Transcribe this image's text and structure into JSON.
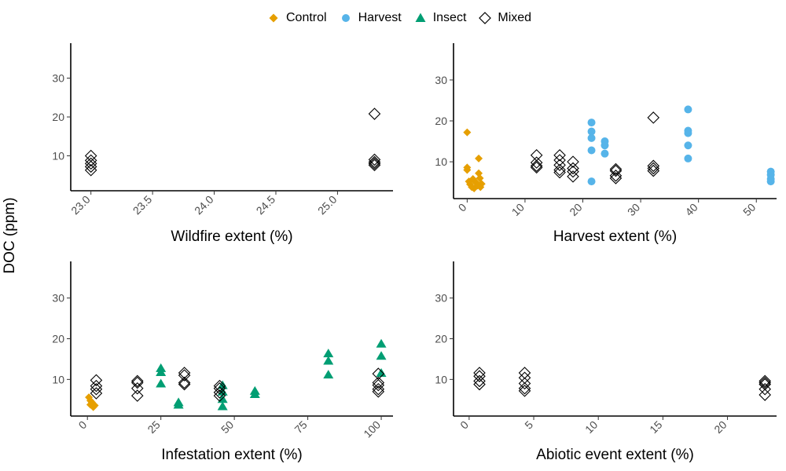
{
  "legend": {
    "items": [
      {
        "label": "Control",
        "color": "#E69F00",
        "shape": "diamond-filled"
      },
      {
        "label": "Harvest",
        "color": "#56B4E9",
        "shape": "circle-filled"
      },
      {
        "label": "Insect",
        "color": "#009E73",
        "shape": "triangle-filled"
      },
      {
        "label": "Mixed",
        "color": "#000000",
        "shape": "diamond-open"
      }
    ]
  },
  "y_label": "DOC (ppm)",
  "chart_data": [
    {
      "type": "scatter",
      "xlabel": "Wildfire extent (%)",
      "ylabel": "DOC (ppm)",
      "xlim": [
        22.9,
        25.45
      ],
      "ylim": [
        1,
        39
      ],
      "xticks": [
        "23.0",
        "23.5",
        "24.0",
        "24.5",
        "25.0"
      ],
      "yticks": [
        "10",
        "20",
        "30"
      ],
      "series": [
        {
          "name": "Mixed",
          "points": [
            [
              23.0,
              10.0
            ],
            [
              23.0,
              8.8
            ],
            [
              23.0,
              8.0
            ],
            [
              23.0,
              7.2
            ],
            [
              23.0,
              6.3
            ],
            [
              25.3,
              20.8
            ],
            [
              25.3,
              9.0
            ],
            [
              25.3,
              8.4
            ],
            [
              25.3,
              8.0
            ],
            [
              25.3,
              7.6
            ]
          ]
        }
      ]
    },
    {
      "type": "scatter",
      "xlabel": "Harvest extent (%)",
      "ylabel": "DOC (ppm)",
      "xlim": [
        -1,
        53.5
      ],
      "ylim": [
        1,
        39
      ],
      "xticks": [
        "0",
        "10",
        "20",
        "30",
        "40",
        "50"
      ],
      "yticks": [
        "10",
        "20",
        "30"
      ],
      "series": [
        {
          "name": "Control",
          "points": [
            [
              0,
              17.2
            ],
            [
              0,
              8.6
            ],
            [
              0,
              8.0
            ],
            [
              0.3,
              5.2
            ],
            [
              0.5,
              4.5
            ],
            [
              0.8,
              3.8
            ],
            [
              1,
              5.8
            ],
            [
              1.2,
              3.5
            ],
            [
              1.5,
              5.0
            ],
            [
              1.8,
              4.2
            ],
            [
              2,
              10.8
            ],
            [
              2,
              7.2
            ],
            [
              2.2,
              6.0
            ],
            [
              2.3,
              3.8
            ],
            [
              2.5,
              4.6
            ]
          ]
        },
        {
          "name": "Harvest",
          "points": [
            [
              21.5,
              19.6
            ],
            [
              21.5,
              17.4
            ],
            [
              21.5,
              15.8
            ],
            [
              21.5,
              12.8
            ],
            [
              21.5,
              5.2
            ],
            [
              23.8,
              15.0
            ],
            [
              23.8,
              14.0
            ],
            [
              23.8,
              12.0
            ],
            [
              38.2,
              22.8
            ],
            [
              38.2,
              17.6
            ],
            [
              38.2,
              17.0
            ],
            [
              38.2,
              14.0
            ],
            [
              38.2,
              10.8
            ],
            [
              52.5,
              7.6
            ],
            [
              52.5,
              6.8
            ],
            [
              52.5,
              5.8
            ],
            [
              52.5,
              5.2
            ]
          ]
        },
        {
          "name": "Mixed",
          "points": [
            [
              12,
              11.6
            ],
            [
              12,
              9.8
            ],
            [
              12,
              9.0
            ],
            [
              12,
              8.6
            ],
            [
              16,
              11.6
            ],
            [
              16,
              10.4
            ],
            [
              16,
              9.2
            ],
            [
              16,
              8.0
            ],
            [
              16,
              7.4
            ],
            [
              18.3,
              10.0
            ],
            [
              18.3,
              8.4
            ],
            [
              18.3,
              7.6
            ],
            [
              18.3,
              6.4
            ],
            [
              25.7,
              8.2
            ],
            [
              25.7,
              7.8
            ],
            [
              25.7,
              6.6
            ],
            [
              25.7,
              6.0
            ],
            [
              32.2,
              20.8
            ],
            [
              32.2,
              9.0
            ],
            [
              32.2,
              8.4
            ],
            [
              32.2,
              7.8
            ]
          ]
        }
      ]
    },
    {
      "type": "scatter",
      "xlabel": "Infestation extent (%)",
      "ylabel": "DOC (ppm)",
      "xlim": [
        -3,
        104
      ],
      "ylim": [
        1,
        39
      ],
      "xticks": [
        "0",
        "25",
        "50",
        "75",
        "100"
      ],
      "yticks": [
        "10",
        "20",
        "30"
      ],
      "series": [
        {
          "name": "Control",
          "points": [
            [
              0.5,
              5.6
            ],
            [
              1,
              4.8
            ],
            [
              1,
              3.8
            ],
            [
              1.5,
              4.4
            ],
            [
              2,
              3.2
            ],
            [
              2.5,
              3.6
            ]
          ]
        },
        {
          "name": "Insect",
          "points": [
            [
              25,
              12.8
            ],
            [
              25,
              11.8
            ],
            [
              25,
              9.0
            ],
            [
              31,
              4.4
            ],
            [
              31,
              3.8
            ],
            [
              46,
              8.6
            ],
            [
              46,
              7.0
            ],
            [
              46,
              5.2
            ],
            [
              46,
              3.4
            ],
            [
              57,
              7.2
            ],
            [
              57,
              6.4
            ],
            [
              82,
              16.4
            ],
            [
              82,
              14.6
            ],
            [
              82,
              11.2
            ],
            [
              100,
              18.8
            ],
            [
              100,
              15.8
            ],
            [
              100,
              11.6
            ]
          ]
        },
        {
          "name": "Mixed",
          "points": [
            [
              3,
              9.8
            ],
            [
              3,
              8.4
            ],
            [
              3,
              7.6
            ],
            [
              3,
              6.6
            ],
            [
              17,
              9.6
            ],
            [
              17,
              9.2
            ],
            [
              17,
              7.8
            ],
            [
              17,
              6.0
            ],
            [
              33,
              11.6
            ],
            [
              33,
              11.0
            ],
            [
              33,
              9.2
            ],
            [
              33,
              8.8
            ],
            [
              45,
              8.4
            ],
            [
              45,
              7.8
            ],
            [
              45,
              6.8
            ],
            [
              45,
              6.0
            ],
            [
              99,
              11.4
            ],
            [
              99,
              9.2
            ],
            [
              99,
              8.6
            ],
            [
              99,
              7.6
            ],
            [
              99,
              7.0
            ]
          ]
        }
      ]
    },
    {
      "type": "scatter",
      "xlabel": "Abiotic event extent (%)",
      "ylabel": "DOC (ppm)",
      "xlim": [
        -0.6,
        23.8
      ],
      "ylim": [
        1,
        39
      ],
      "xticks": [
        "0",
        "5",
        "10",
        "15",
        "20"
      ],
      "yticks": [
        "10",
        "20",
        "30"
      ],
      "series": [
        {
          "name": "Mixed",
          "points": [
            [
              0.8,
              11.6
            ],
            [
              0.8,
              10.8
            ],
            [
              0.8,
              9.6
            ],
            [
              0.8,
              8.8
            ],
            [
              4.3,
              11.6
            ],
            [
              4.3,
              10.4
            ],
            [
              4.3,
              9.0
            ],
            [
              4.3,
              7.8
            ],
            [
              4.3,
              7.2
            ],
            [
              22.9,
              9.6
            ],
            [
              22.9,
              9.2
            ],
            [
              22.9,
              8.8
            ],
            [
              22.9,
              7.6
            ],
            [
              22.9,
              6.2
            ]
          ]
        }
      ]
    }
  ]
}
